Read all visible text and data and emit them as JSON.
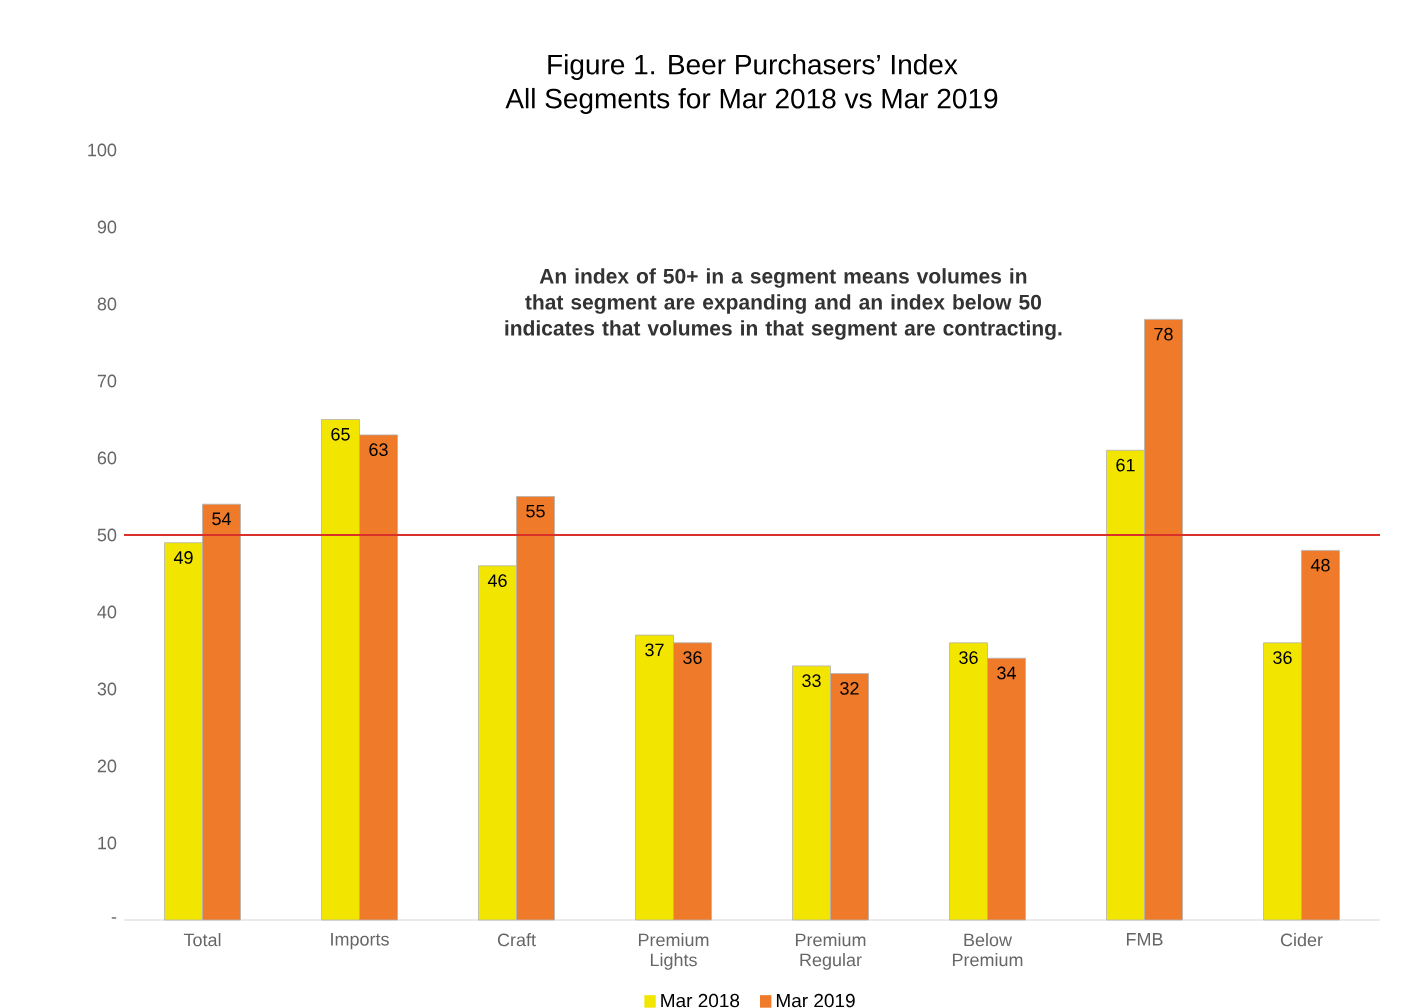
{
  "chart_data": {
    "type": "bar",
    "title": "Figure 1. Beer Purchasers’ Index",
    "subtitle": "All Segments for Mar 2018 vs Mar 2019",
    "categories": [
      "Total",
      "Imports",
      "Craft",
      "Premium Lights",
      "Premium Regular",
      "Below  Premium",
      "FMB",
      "Cider"
    ],
    "series": [
      {
        "name": "Mar 2018",
        "color": "#f2e600",
        "values": [
          49,
          65,
          46,
          37,
          33,
          36,
          61,
          36
        ]
      },
      {
        "name": "Mar 2019",
        "color": "#ee7a2a",
        "values": [
          54,
          63,
          55,
          36,
          32,
          34,
          78,
          48
        ]
      }
    ],
    "ylim": [
      0,
      100
    ],
    "yticks": [
      {
        "value": 0,
        "label": "-"
      },
      10,
      20,
      30,
      40,
      50,
      60,
      70,
      80,
      90,
      100
    ],
    "ref_lines": [
      {
        "axis": "y",
        "value": 50,
        "color": "#d9302a"
      }
    ],
    "annotations": [
      "An index of 50+ in a segment means volumes in that segment are expanding and an index below 50 indicates that volumes in that segment are contracting."
    ],
    "data_labels": true,
    "legend": "bottom"
  }
}
